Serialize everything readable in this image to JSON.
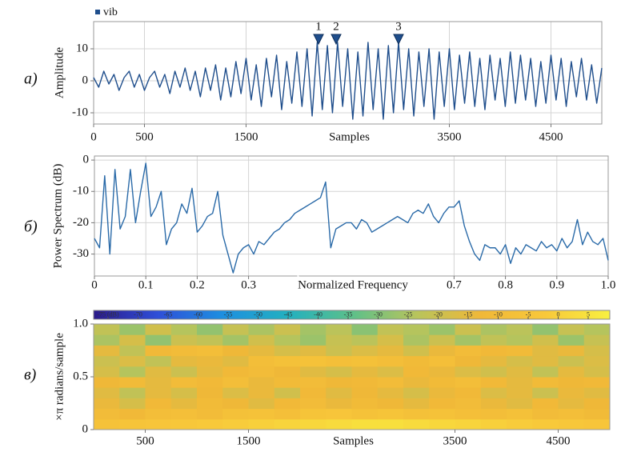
{
  "chart_data": [
    {
      "type": "line",
      "panel_label": "а)",
      "ylabel": "Amplitude",
      "xlabel": "Samples",
      "xlim": [
        0,
        5000
      ],
      "ylim": [
        -13.5,
        18.5
      ],
      "xticks": [
        0,
        500,
        1500,
        3500,
        4500
      ],
      "yticks": [
        -10,
        0,
        10
      ],
      "grid": true,
      "legend": "upper left",
      "annotations": [
        {
          "label": "1",
          "x": 2213,
          "y": 12
        },
        {
          "label": "2",
          "x": 2386,
          "y": 12
        },
        {
          "label": "3",
          "x": 3000,
          "y": 12
        }
      ],
      "x": [
        0,
        50,
        100,
        150,
        200,
        250,
        300,
        350,
        400,
        450,
        500,
        550,
        600,
        650,
        700,
        750,
        800,
        850,
        900,
        950,
        1000,
        1050,
        1100,
        1150,
        1200,
        1250,
        1300,
        1350,
        1400,
        1450,
        1500,
        1550,
        1600,
        1650,
        1700,
        1750,
        1800,
        1850,
        1900,
        1950,
        2000,
        2050,
        2100,
        2150,
        2200,
        2250,
        2300,
        2350,
        2400,
        2450,
        2500,
        2550,
        2600,
        2650,
        2700,
        2750,
        2800,
        2850,
        2900,
        2950,
        3000,
        3050,
        3100,
        3150,
        3200,
        3250,
        3300,
        3350,
        3400,
        3450,
        3500,
        3550,
        3600,
        3650,
        3700,
        3750,
        3800,
        3850,
        3900,
        3950,
        4000,
        4050,
        4100,
        4150,
        4200,
        4250,
        4300,
        4350,
        4400,
        4450,
        4500,
        4550,
        4600,
        4650,
        4700,
        4750,
        4800,
        4850,
        4900,
        4950,
        5000
      ],
      "series": [
        {
          "name": "vib",
          "color": "#1f4e8c",
          "values": [
            1,
            -2,
            3,
            -1,
            2,
            -3,
            1,
            3,
            -2,
            2,
            -3,
            1,
            3,
            -2,
            2,
            -4,
            3,
            -2,
            4,
            -3,
            3,
            -5,
            4,
            -3,
            5,
            -6,
            4,
            -5,
            6,
            -4,
            7,
            -6,
            5,
            -8,
            7,
            -5,
            8,
            -9,
            6,
            -7,
            9,
            -8,
            10,
            -11,
            12,
            -9,
            11,
            -10,
            12,
            -8,
            10,
            -12,
            9,
            -11,
            12,
            -9,
            10,
            -12,
            11,
            -10,
            12,
            -9,
            10,
            -11,
            9,
            -8,
            10,
            -12,
            9,
            -8,
            10,
            -9,
            8,
            -7,
            9,
            -8,
            7,
            -9,
            8,
            -6,
            7,
            -8,
            9,
            -7,
            8,
            -6,
            7,
            -8,
            6,
            -7,
            8,
            -6,
            7,
            -8,
            6,
            -5,
            7,
            -6,
            5,
            -7,
            4
          ]
        }
      ]
    },
    {
      "type": "line",
      "panel_label": "б)",
      "ylabel": "Power Spectrum (dB)",
      "xlabel": "Normalized Frequency",
      "xlim": [
        0,
        1
      ],
      "ylim": [
        -37,
        1.3
      ],
      "xticks": [
        0,
        0.1,
        0.2,
        0.3,
        0.7,
        0.8,
        0.9,
        {
          "value": 1,
          "label": "1.0"
        }
      ],
      "yticks": [
        0,
        -10,
        -20,
        -30
      ],
      "grid": true,
      "x": [
        0,
        0.01,
        0.02,
        0.03,
        0.04,
        0.05,
        0.06,
        0.07,
        0.08,
        0.09,
        0.1,
        0.11,
        0.12,
        0.13,
        0.14,
        0.15,
        0.16,
        0.17,
        0.18,
        0.19,
        0.2,
        0.21,
        0.22,
        0.23,
        0.24,
        0.25,
        0.26,
        0.27,
        0.28,
        0.29,
        0.3,
        0.31,
        0.32,
        0.33,
        0.34,
        0.35,
        0.36,
        0.37,
        0.38,
        0.39,
        0.4,
        0.41,
        0.42,
        0.43,
        0.44,
        0.45,
        0.46,
        0.47,
        0.48,
        0.49,
        0.5,
        0.51,
        0.52,
        0.53,
        0.54,
        0.55,
        0.56,
        0.57,
        0.58,
        0.59,
        0.6,
        0.61,
        0.62,
        0.63,
        0.64,
        0.65,
        0.66,
        0.67,
        0.68,
        0.69,
        0.7,
        0.71,
        0.72,
        0.73,
        0.74,
        0.75,
        0.76,
        0.77,
        0.78,
        0.79,
        0.8,
        0.81,
        0.82,
        0.83,
        0.84,
        0.85,
        0.86,
        0.87,
        0.88,
        0.89,
        0.9,
        0.91,
        0.92,
        0.93,
        0.94,
        0.95,
        0.96,
        0.97,
        0.98,
        0.99,
        1
      ],
      "series": [
        {
          "color": "#2a6aa8",
          "values": [
            -25,
            -28,
            -5,
            -30,
            -3,
            -22,
            -18,
            -3,
            -20,
            -10,
            -1,
            -18,
            -15,
            -10,
            -27,
            -22,
            -20,
            -14,
            -17,
            -9,
            -23,
            -21,
            -18,
            -17,
            -10,
            -24,
            -30,
            -36,
            -30,
            -28,
            -27,
            -30,
            -26,
            -27,
            -25,
            -23,
            -22,
            -20,
            -19,
            -17,
            -16,
            -15,
            -14,
            -13,
            -12,
            -7,
            -28,
            -22,
            -21,
            -20,
            -20,
            -22,
            -19,
            -20,
            -23,
            -22,
            -21,
            -20,
            -19,
            -18,
            -19,
            -20,
            -17,
            -16,
            -17,
            -14,
            -18,
            -20,
            -17,
            -15,
            -15,
            -13,
            -21,
            -26,
            -30,
            -32,
            -27,
            -28,
            -28,
            -30,
            -27,
            -33,
            -28,
            -30,
            -27,
            -28,
            -29,
            -26,
            -28,
            -27,
            -29,
            -25,
            -28,
            -26,
            -19,
            -27,
            -23,
            -26,
            -27,
            -25,
            -32
          ]
        }
      ]
    },
    {
      "type": "heatmap",
      "panel_label": "в)",
      "ylabel": "×π radians/sample",
      "xlabel": "Samples",
      "xlim": [
        0,
        5000
      ],
      "ylim": [
        0,
        1
      ],
      "xticks": [
        500,
        1500,
        3500,
        4500
      ],
      "yticks": [
        0,
        0.5,
        {
          "value": 1,
          "label": "1.0"
        }
      ],
      "clim": [
        -77.4,
        8.6
      ],
      "cbticks": [
        {
          "value": -75,
          "label": "-75 (dB)"
        },
        -70,
        -65,
        -60,
        -55,
        -50,
        -45,
        -40,
        -35,
        -30,
        -25,
        -20,
        -15,
        -10,
        -5,
        0,
        5
      ],
      "colorscale": [
        "#2b1a8a",
        "#2f4fd8",
        "#1e8fe0",
        "#22b0c0",
        "#5cc08a",
        "#b8c45c",
        "#f0b838",
        "#f8c83a",
        "#f8f040"
      ],
      "x": [
        125,
        375,
        625,
        875,
        1125,
        1375,
        1625,
        1875,
        2125,
        2375,
        2625,
        2875,
        3125,
        3375,
        3625,
        3875,
        4125,
        4375,
        4625,
        4875
      ],
      "y": [
        0.05,
        0.15,
        0.25,
        0.35,
        0.45,
        0.55,
        0.65,
        0.75,
        0.85,
        0.95
      ],
      "z": [
        [
          -6,
          -5,
          -4,
          -3,
          -2,
          -1,
          0,
          1,
          2,
          3,
          4,
          4,
          3,
          2,
          1,
          0,
          -1,
          -2,
          -3,
          -4
        ],
        [
          -10,
          -12,
          -9,
          -8,
          -10,
          -7,
          -6,
          -8,
          -5,
          -4,
          -6,
          -5,
          -7,
          -6,
          -8,
          -9,
          -7,
          -10,
          -9,
          -11
        ],
        [
          -14,
          -18,
          -12,
          -15,
          -11,
          -13,
          -16,
          -12,
          -10,
          -14,
          -11,
          -13,
          -15,
          -12,
          -10,
          -14,
          -16,
          -12,
          -15,
          -13
        ],
        [
          -16,
          -22,
          -15,
          -18,
          -13,
          -17,
          -14,
          -19,
          -12,
          -16,
          -13,
          -15,
          -18,
          -14,
          -12,
          -17,
          -15,
          -20,
          -14,
          -16
        ],
        [
          -13,
          -11,
          -15,
          -10,
          -12,
          -9,
          -14,
          -11,
          -10,
          -13,
          -12,
          -10,
          -14,
          -11,
          -9,
          -12,
          -15,
          -11,
          -13,
          -12
        ],
        [
          -18,
          -24,
          -16,
          -20,
          -15,
          -12,
          -10,
          -13,
          -16,
          -18,
          -15,
          -17,
          -12,
          -14,
          -17,
          -19,
          -16,
          -22,
          -15,
          -18
        ],
        [
          -20,
          -17,
          -22,
          -15,
          -14,
          -16,
          -9,
          -7,
          -6,
          -8,
          -7,
          -9,
          -11,
          -8,
          -13,
          -15,
          -18,
          -16,
          -20,
          -17
        ],
        [
          -15,
          -22,
          -12,
          -10,
          -9,
          -13,
          -15,
          -18,
          -16,
          -20,
          -17,
          -15,
          -19,
          -14,
          -10,
          -12,
          -11,
          -16,
          -14,
          -18
        ],
        [
          -25,
          -18,
          -28,
          -20,
          -22,
          -26,
          -19,
          -24,
          -27,
          -21,
          -23,
          -18,
          -25,
          -20,
          -26,
          -22,
          -24,
          -19,
          -27,
          -21
        ],
        [
          -22,
          -27,
          -19,
          -24,
          -28,
          -21,
          -25,
          -20,
          -26,
          -23,
          -29,
          -22,
          -24,
          -27,
          -20,
          -25,
          -23,
          -28,
          -21,
          -24
        ]
      ]
    }
  ]
}
